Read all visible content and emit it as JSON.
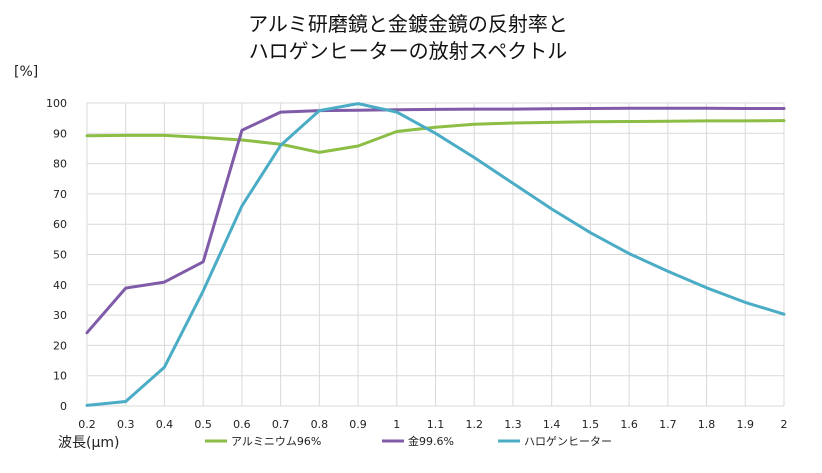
{
  "chart_data": {
    "type": "line",
    "title_lines": [
      "アルミ研磨鏡と金鍍金鏡の反射率と",
      "ハロゲンヒーターの放射スペクトル"
    ],
    "ylabel": "[%]",
    "xlabel": "波長(μm)",
    "ylim": [
      0,
      100
    ],
    "yticks": [
      "0",
      "10",
      "20",
      "30",
      "40",
      "50",
      "60",
      "70",
      "80",
      "90",
      "100"
    ],
    "xticks": [
      "0.2",
      "0.3",
      "0.4",
      "0.5",
      "0.6",
      "0.7",
      "0.8",
      "0.9",
      "1",
      "1.1",
      "1.2",
      "1.3",
      "1.4",
      "1.5",
      "1.6",
      "1.7",
      "1.8",
      "1.9",
      "2"
    ],
    "x": [
      0.2,
      0.3,
      0.4,
      0.5,
      0.6,
      0.7,
      0.8,
      0.9,
      1.0,
      1.1,
      1.2,
      1.3,
      1.4,
      1.5,
      1.6,
      1.7,
      1.8,
      1.9,
      2.0
    ],
    "grid": true,
    "legend_position": "bottom",
    "series": [
      {
        "name": "アルミニウム96%",
        "color": "#8cbd44",
        "values": [
          89.2,
          89.3,
          89.3,
          88.6,
          87.8,
          86.4,
          83.7,
          85.8,
          90.6,
          92.0,
          93.0,
          93.4,
          93.6,
          93.8,
          93.9,
          94.0,
          94.1,
          94.1,
          94.2
        ]
      },
      {
        "name": "金99.6%",
        "color": "#7f5ba8",
        "values": [
          24.2,
          38.9,
          40.9,
          47.6,
          91.0,
          97.0,
          97.5,
          97.6,
          97.8,
          97.9,
          98.0,
          98.0,
          98.1,
          98.2,
          98.3,
          98.3,
          98.3,
          98.2,
          98.2
        ]
      },
      {
        "name": "ハロゲンヒーター",
        "color": "#4bacc6",
        "values": [
          0.2,
          1.5,
          12.8,
          38.0,
          66.0,
          86.0,
          97.5,
          99.8,
          97.0,
          90.0,
          82.0,
          73.5,
          65.0,
          57.2,
          50.3,
          44.5,
          39.0,
          34.2,
          30.3
        ]
      }
    ]
  }
}
